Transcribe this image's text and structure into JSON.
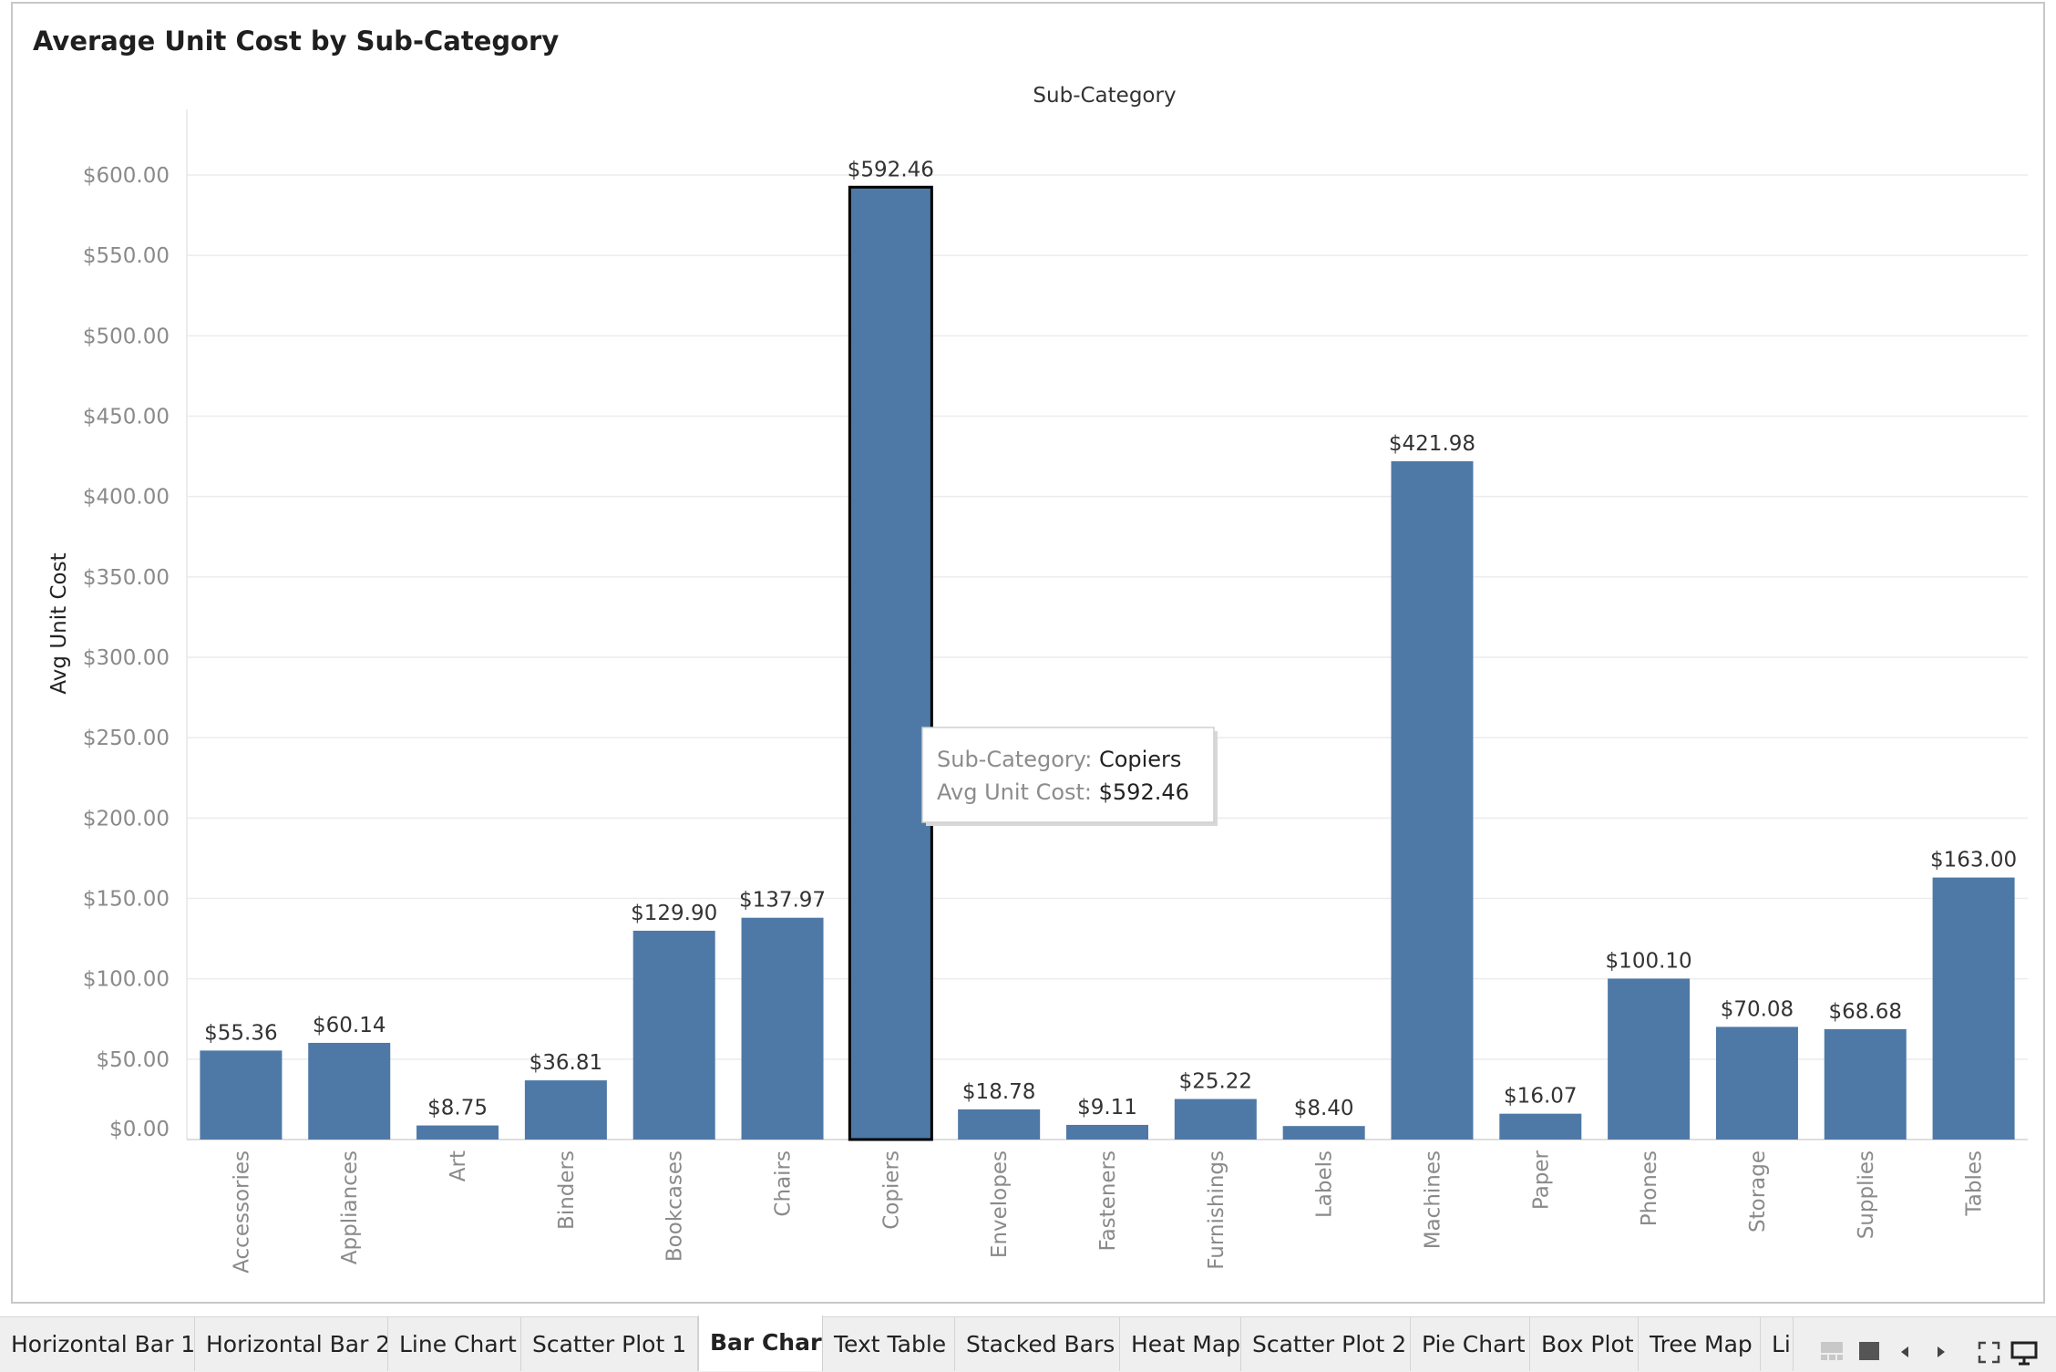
{
  "title": "Average Unit Cost by Sub-Category",
  "chart_data": {
    "type": "bar",
    "xlabel": "Sub-Category",
    "ylabel": "Avg Unit Cost",
    "ylim": [
      0,
      640
    ],
    "yticks": [
      0,
      50,
      100,
      150,
      200,
      250,
      300,
      350,
      400,
      450,
      500,
      550,
      600
    ],
    "ytick_labels": [
      "$0.00",
      "$50.00",
      "$100.00",
      "$150.00",
      "$200.00",
      "$250.00",
      "$300.00",
      "$350.00",
      "$400.00",
      "$450.00",
      "$500.00",
      "$550.00",
      "$600.00"
    ],
    "categories": [
      "Accessories",
      "Appliances",
      "Art",
      "Binders",
      "Bookcases",
      "Chairs",
      "Copiers",
      "Envelopes",
      "Fasteners",
      "Furnishings",
      "Labels",
      "Machines",
      "Paper",
      "Phones",
      "Storage",
      "Supplies",
      "Tables"
    ],
    "values": [
      55.36,
      60.14,
      8.75,
      36.81,
      129.9,
      137.97,
      592.46,
      18.78,
      9.11,
      25.22,
      8.4,
      421.98,
      16.07,
      100.1,
      70.08,
      68.68,
      163.0
    ],
    "value_labels": [
      "$55.36",
      "$60.14",
      "$8.75",
      "$36.81",
      "$129.90",
      "$137.97",
      "$592.46",
      "$18.78",
      "$9.11",
      "$25.22",
      "$8.40",
      "$421.98",
      "$16.07",
      "$100.10",
      "$70.08",
      "$68.68",
      "$163.00"
    ],
    "grid": true,
    "bar_color": "#4e79a7",
    "selected": "Copiers"
  },
  "tooltip": {
    "line1_label": "Sub-Category:",
    "line1_value": "Copiers",
    "line2_label": "Avg Unit Cost:",
    "line2_value": "$592.46"
  },
  "tabs": [
    {
      "label": "Horizontal Bar 1"
    },
    {
      "label": "Horizontal Bar 2"
    },
    {
      "label": "Line Chart"
    },
    {
      "label": "Scatter Plot 1"
    },
    {
      "label": "Bar Chart",
      "active": true
    },
    {
      "label": "Text Table"
    },
    {
      "label": "Stacked Bars"
    },
    {
      "label": "Heat Map"
    },
    {
      "label": "Scatter Plot 2"
    },
    {
      "label": "Pie Chart"
    },
    {
      "label": "Box Plot"
    },
    {
      "label": "Tree Map"
    },
    {
      "label": "Li"
    }
  ],
  "controls": [
    "filmstrip-icon",
    "tiles-icon",
    "prev-sheet-icon",
    "next-sheet-icon",
    "fullscreen-icon",
    "presentation-icon"
  ]
}
